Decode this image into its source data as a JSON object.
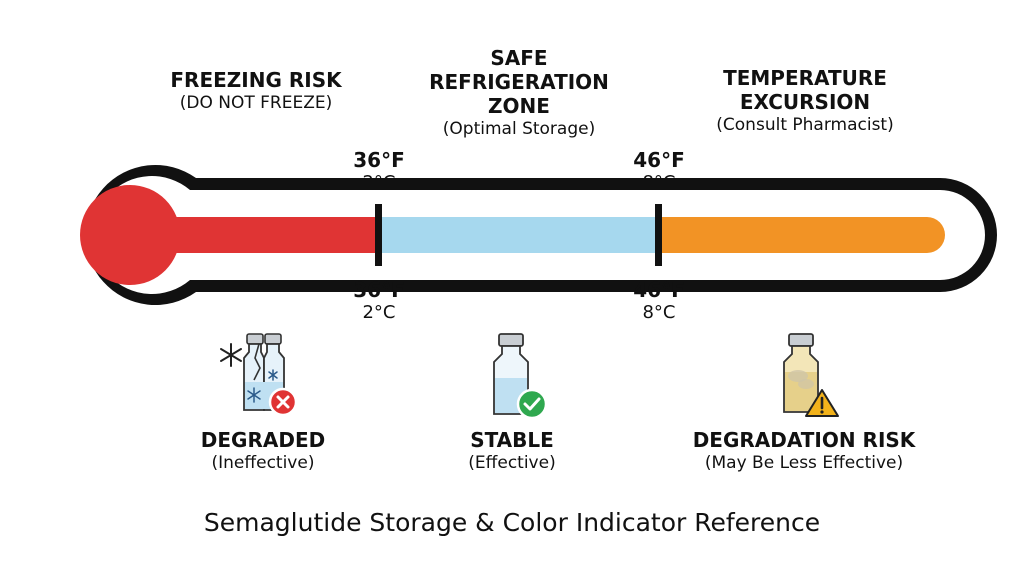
{
  "zones": {
    "freezing": {
      "title": "FREEZING RISK",
      "subtitle": "(DO NOT FREEZE)",
      "color": "#e03434"
    },
    "safe": {
      "title_line1": "SAFE",
      "title_line2": "REFRIGERATION",
      "title_line3": "ZONE",
      "subtitle": "(Optimal Storage)",
      "color": "#a6d8ee"
    },
    "excursion": {
      "title_line1": "TEMPERATURE",
      "title_line2": "EXCURSION",
      "subtitle": "(Consult Pharmacist)",
      "color": "#f29325"
    }
  },
  "thresholds": {
    "low": {
      "f": "36°F",
      "c": "2°C"
    },
    "high": {
      "f": "46°F",
      "c": "8°C"
    }
  },
  "status": {
    "degraded": {
      "title": "DEGRADED",
      "subtitle": "(Ineffective)",
      "icon": "frozen-broken-vial-icon"
    },
    "stable": {
      "title": "STABLE",
      "subtitle": "(Effective)",
      "icon": "clear-vial-check-icon"
    },
    "risk": {
      "title": "DEGRADATION RISK",
      "subtitle": "(May Be Less Effective)",
      "icon": "cloudy-vial-warning-icon"
    }
  },
  "footer": {
    "caption": "Semaglutide Storage & Color Indicator Reference"
  }
}
